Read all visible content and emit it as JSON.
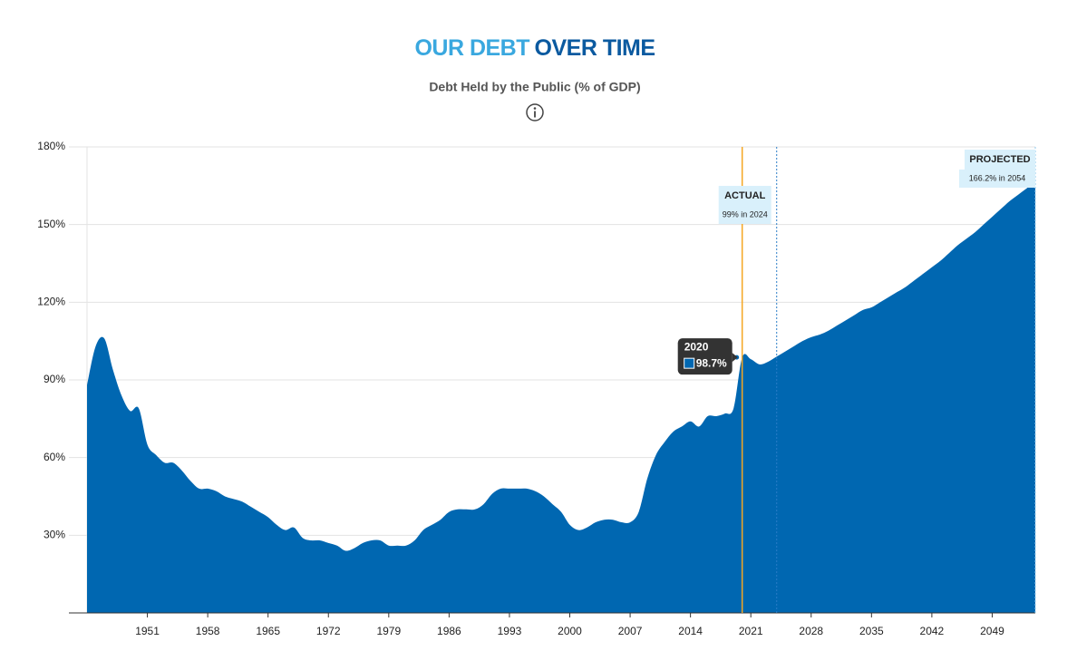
{
  "chart_data": {
    "type": "area",
    "title_parts": [
      {
        "text": "OUR DEBT",
        "color": "#3aa8df"
      },
      {
        "text": "OVER TIME",
        "color": "#0b5aa0"
      }
    ],
    "subtitle": "Debt Held by the Public (% of GDP)",
    "x": [
      1944,
      1945,
      1946,
      1947,
      1948,
      1949,
      1950,
      1951,
      1952,
      1953,
      1954,
      1955,
      1956,
      1957,
      1958,
      1959,
      1960,
      1961,
      1962,
      1963,
      1964,
      1965,
      1966,
      1967,
      1968,
      1969,
      1970,
      1971,
      1972,
      1973,
      1974,
      1975,
      1976,
      1977,
      1978,
      1979,
      1980,
      1981,
      1982,
      1983,
      1984,
      1985,
      1986,
      1987,
      1988,
      1989,
      1990,
      1991,
      1992,
      1993,
      1994,
      1995,
      1996,
      1997,
      1998,
      1999,
      2000,
      2001,
      2002,
      2003,
      2004,
      2005,
      2006,
      2007,
      2008,
      2009,
      2010,
      2011,
      2012,
      2013,
      2014,
      2015,
      2016,
      2017,
      2018,
      2019,
      2020,
      2021,
      2022,
      2023,
      2024,
      2025,
      2026,
      2027,
      2028,
      2029,
      2030,
      2031,
      2032,
      2033,
      2034,
      2035,
      2036,
      2037,
      2038,
      2039,
      2040,
      2041,
      2042,
      2043,
      2044,
      2045,
      2046,
      2047,
      2048,
      2049,
      2050,
      2051,
      2052,
      2053,
      2054
    ],
    "series": [
      {
        "color": "#0067b1",
        "values": [
          88,
          103,
          106,
          94,
          84,
          78,
          79,
          65,
          61,
          58,
          58,
          55,
          51,
          48,
          48,
          47,
          45,
          44,
          43,
          41,
          39,
          37,
          34,
          32,
          33,
          29,
          28,
          28,
          27,
          26,
          24,
          25,
          27,
          28,
          28,
          26,
          26,
          26,
          28,
          32,
          34,
          36,
          39,
          40,
          40,
          40,
          42,
          46,
          48,
          48,
          48,
          48,
          47,
          45,
          42,
          39,
          34,
          32,
          33,
          35,
          36,
          36,
          35,
          35,
          39,
          52,
          61,
          66,
          70,
          72,
          74,
          72,
          76,
          76,
          77,
          79,
          98.7,
          98,
          96,
          97,
          99,
          101,
          103,
          105,
          106.5,
          107.5,
          109,
          111,
          113,
          115,
          117,
          118,
          120,
          122,
          124,
          126,
          128.5,
          131,
          133.5,
          136,
          139,
          142,
          144.5,
          147,
          150,
          153,
          156,
          159,
          161.5,
          164,
          166.2
        ]
      }
    ],
    "xlim": [
      1944,
      2054
    ],
    "xticks": [
      1951,
      1958,
      1965,
      1972,
      1979,
      1986,
      1993,
      2000,
      2007,
      2014,
      2021,
      2028,
      2035,
      2042,
      2049
    ],
    "ylim": [
      0,
      180
    ],
    "yticks": [
      {
        "value": 30,
        "label": "30%"
      },
      {
        "value": 60,
        "label": "60%"
      },
      {
        "value": 90,
        "label": "90%"
      },
      {
        "value": 120,
        "label": "120%"
      },
      {
        "value": 150,
        "label": "150%"
      },
      {
        "value": 180,
        "label": "180%"
      }
    ],
    "grid": true,
    "annotations": [
      {
        "x": 2024,
        "title": "ACTUAL",
        "note": "99% in 2024"
      },
      {
        "x": 2054,
        "title": "PROJECTED",
        "note": "166.2% in 2054"
      }
    ],
    "hover": {
      "x": 2020,
      "value": 98.7,
      "value_label": "98.7%",
      "line_color": "#f5a623"
    }
  }
}
